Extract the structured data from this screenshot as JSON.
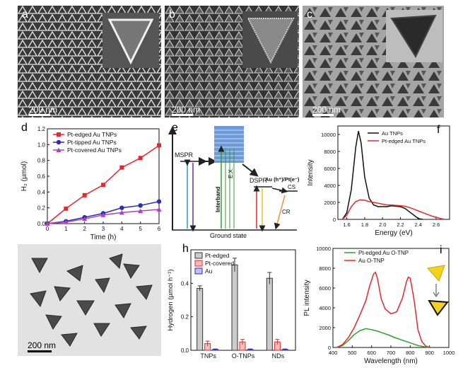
{
  "panels": {
    "a": {
      "label": "a",
      "scale": "200 nm"
    },
    "b": {
      "label": "b",
      "scale": "200 nm"
    },
    "c": {
      "label": "c",
      "scale": "200 nm"
    },
    "d": {
      "label": "d"
    },
    "e": {
      "label": "e"
    },
    "f": {
      "label": "f"
    },
    "g": {
      "scale": "200 nm"
    },
    "h": {
      "label": "h"
    },
    "i": {
      "label": "i"
    }
  },
  "diagram_e": {
    "mspr": "MSPR",
    "dspr": "DSPR",
    "interband": "Interband",
    "ex": "E.X.",
    "ground": "Ground state",
    "au_pt": "Au (h⁺)/Pt(e⁻)",
    "cs": "CS",
    "cr": "CR"
  },
  "chart_data": [
    {
      "id": "d",
      "type": "line",
      "xlabel": "Time (h)",
      "ylabel": "H₂ (µmol)",
      "xlim": [
        0,
        6
      ],
      "ylim": [
        0,
        1.2
      ],
      "xticks": [
        "0",
        "1",
        "2",
        "3",
        "4",
        "5",
        "6"
      ],
      "yticks": [
        "0.0",
        "0.2",
        "0.4",
        "0.6",
        "0.8",
        "1.0",
        "1.2"
      ],
      "legend": "top-left",
      "series": [
        {
          "name": "Pt-edged    Au TNPs",
          "color": "#e8262b",
          "marker": "square",
          "x": [
            0,
            1,
            2,
            3,
            4,
            5,
            6
          ],
          "y": [
            0.0,
            0.19,
            0.36,
            0.49,
            0.71,
            0.83,
            0.99
          ]
        },
        {
          "name": "Pt-tipped   Au TNPs",
          "color": "#2b2bb5",
          "marker": "circle",
          "x": [
            0,
            1,
            2,
            3,
            4,
            5,
            6
          ],
          "y": [
            0.0,
            0.03,
            0.08,
            0.13,
            0.2,
            0.23,
            0.28
          ]
        },
        {
          "name": "Pt-covered Au TNPs",
          "color": "#b040c0",
          "marker": "triangle",
          "x": [
            0,
            1,
            2,
            3,
            4,
            5,
            6
          ],
          "y": [
            0.0,
            0.02,
            0.06,
            0.11,
            0.14,
            0.16,
            0.18
          ]
        }
      ]
    },
    {
      "id": "f",
      "type": "line",
      "xlabel": "Energy (eV)",
      "ylabel": "Intensity",
      "xlim": [
        1.5,
        2.75
      ],
      "ylim": [
        0,
        11000
      ],
      "xticks": [
        "1.6",
        "1.8",
        "2.0",
        "2.2",
        "2.4",
        "2.6"
      ],
      "yticks": [
        "0",
        "2000",
        "4000",
        "6000",
        "8000",
        "10000"
      ],
      "legend": "top-right",
      "series": [
        {
          "name": "Au TNPs",
          "color": "#111111",
          "x": [
            1.55,
            1.6,
            1.65,
            1.7,
            1.73,
            1.76,
            1.8,
            1.85,
            1.9,
            1.95,
            2.0,
            2.05,
            2.1,
            2.15,
            2.2,
            2.25,
            2.3,
            2.35,
            2.4,
            2.45
          ],
          "y": [
            0,
            800,
            3500,
            8500,
            10400,
            9000,
            5000,
            2500,
            1700,
            1500,
            1500,
            1500,
            1600,
            1550,
            1500,
            1300,
            900,
            500,
            100,
            0
          ]
        },
        {
          "name": "Pt-edged Au TNPs",
          "color": "#e8262b",
          "x": [
            1.55,
            1.6,
            1.65,
            1.7,
            1.75,
            1.8,
            1.85,
            1.9,
            1.95,
            2.0,
            2.05,
            2.1,
            2.15,
            2.2,
            2.25,
            2.3,
            2.35,
            2.4,
            2.45,
            2.5,
            2.55,
            2.6,
            2.65,
            2.7
          ],
          "y": [
            0,
            500,
            1500,
            2100,
            2300,
            2250,
            2100,
            2000,
            1900,
            1800,
            1700,
            1700,
            1650,
            1600,
            1550,
            1400,
            1200,
            1000,
            800,
            600,
            400,
            250,
            100,
            0
          ]
        }
      ]
    },
    {
      "id": "h",
      "type": "bar",
      "ylabel": "Hydrogen (µmol h⁻¹)",
      "categories": [
        "TNPs",
        "O-TNPs",
        "NDs"
      ],
      "ylim": [
        0,
        0.6
      ],
      "yticks": [
        "0.0",
        "0.2",
        "0.4"
      ],
      "legend": "top-left",
      "series": [
        {
          "name": "Pt-edged",
          "color": "#333333",
          "fill": "#cccccc",
          "values": [
            0.37,
            0.51,
            0.43
          ],
          "err": [
            0.015,
            0.04,
            0.035
          ]
        },
        {
          "name": "Pt-covered",
          "color": "#e8262b",
          "fill": "#f5bfbf",
          "values": [
            0.04,
            0.05,
            0.05
          ],
          "err": [
            0.015,
            0.015,
            0.015
          ]
        },
        {
          "name": "Au",
          "color": "#2b2bb5",
          "fill": "#bfbff0",
          "values": [
            0.005,
            0.005,
            0.005
          ],
          "err": [
            0.003,
            0.003,
            0.003
          ]
        }
      ]
    },
    {
      "id": "i",
      "type": "line",
      "xlabel": "Wavelength (nm)",
      "ylabel": "PL intensity",
      "xlim": [
        400,
        1000
      ],
      "ylim": [
        0,
        10000
      ],
      "xticks": [
        "400",
        "500",
        "600",
        "700",
        "800",
        "900",
        "1000"
      ],
      "yticks": [
        "0",
        "2000",
        "4000",
        "6000",
        "8000",
        "10000"
      ],
      "legend": "top-left",
      "series": [
        {
          "name": "Pt-edged Au O-TNP",
          "color": "#2ca02c",
          "x": [
            420,
            450,
            480,
            510,
            540,
            570,
            600,
            630,
            660,
            690,
            720,
            750,
            780,
            810,
            840,
            870,
            900
          ],
          "y": [
            0,
            200,
            700,
            1300,
            1700,
            1900,
            1800,
            1650,
            1450,
            1250,
            1000,
            800,
            600,
            400,
            200,
            80,
            0
          ]
        },
        {
          "name": "Au O-TNP",
          "color": "#e8262b",
          "x": [
            420,
            450,
            480,
            510,
            540,
            570,
            590,
            610,
            620,
            630,
            650,
            670,
            700,
            730,
            760,
            780,
            790,
            800,
            820,
            840,
            860,
            880,
            900
          ],
          "y": [
            0,
            300,
            1000,
            2000,
            3300,
            4700,
            6200,
            7400,
            7600,
            7000,
            4900,
            3900,
            3400,
            3600,
            5000,
            6600,
            7100,
            7000,
            4800,
            1800,
            600,
            150,
            0
          ]
        }
      ]
    }
  ]
}
